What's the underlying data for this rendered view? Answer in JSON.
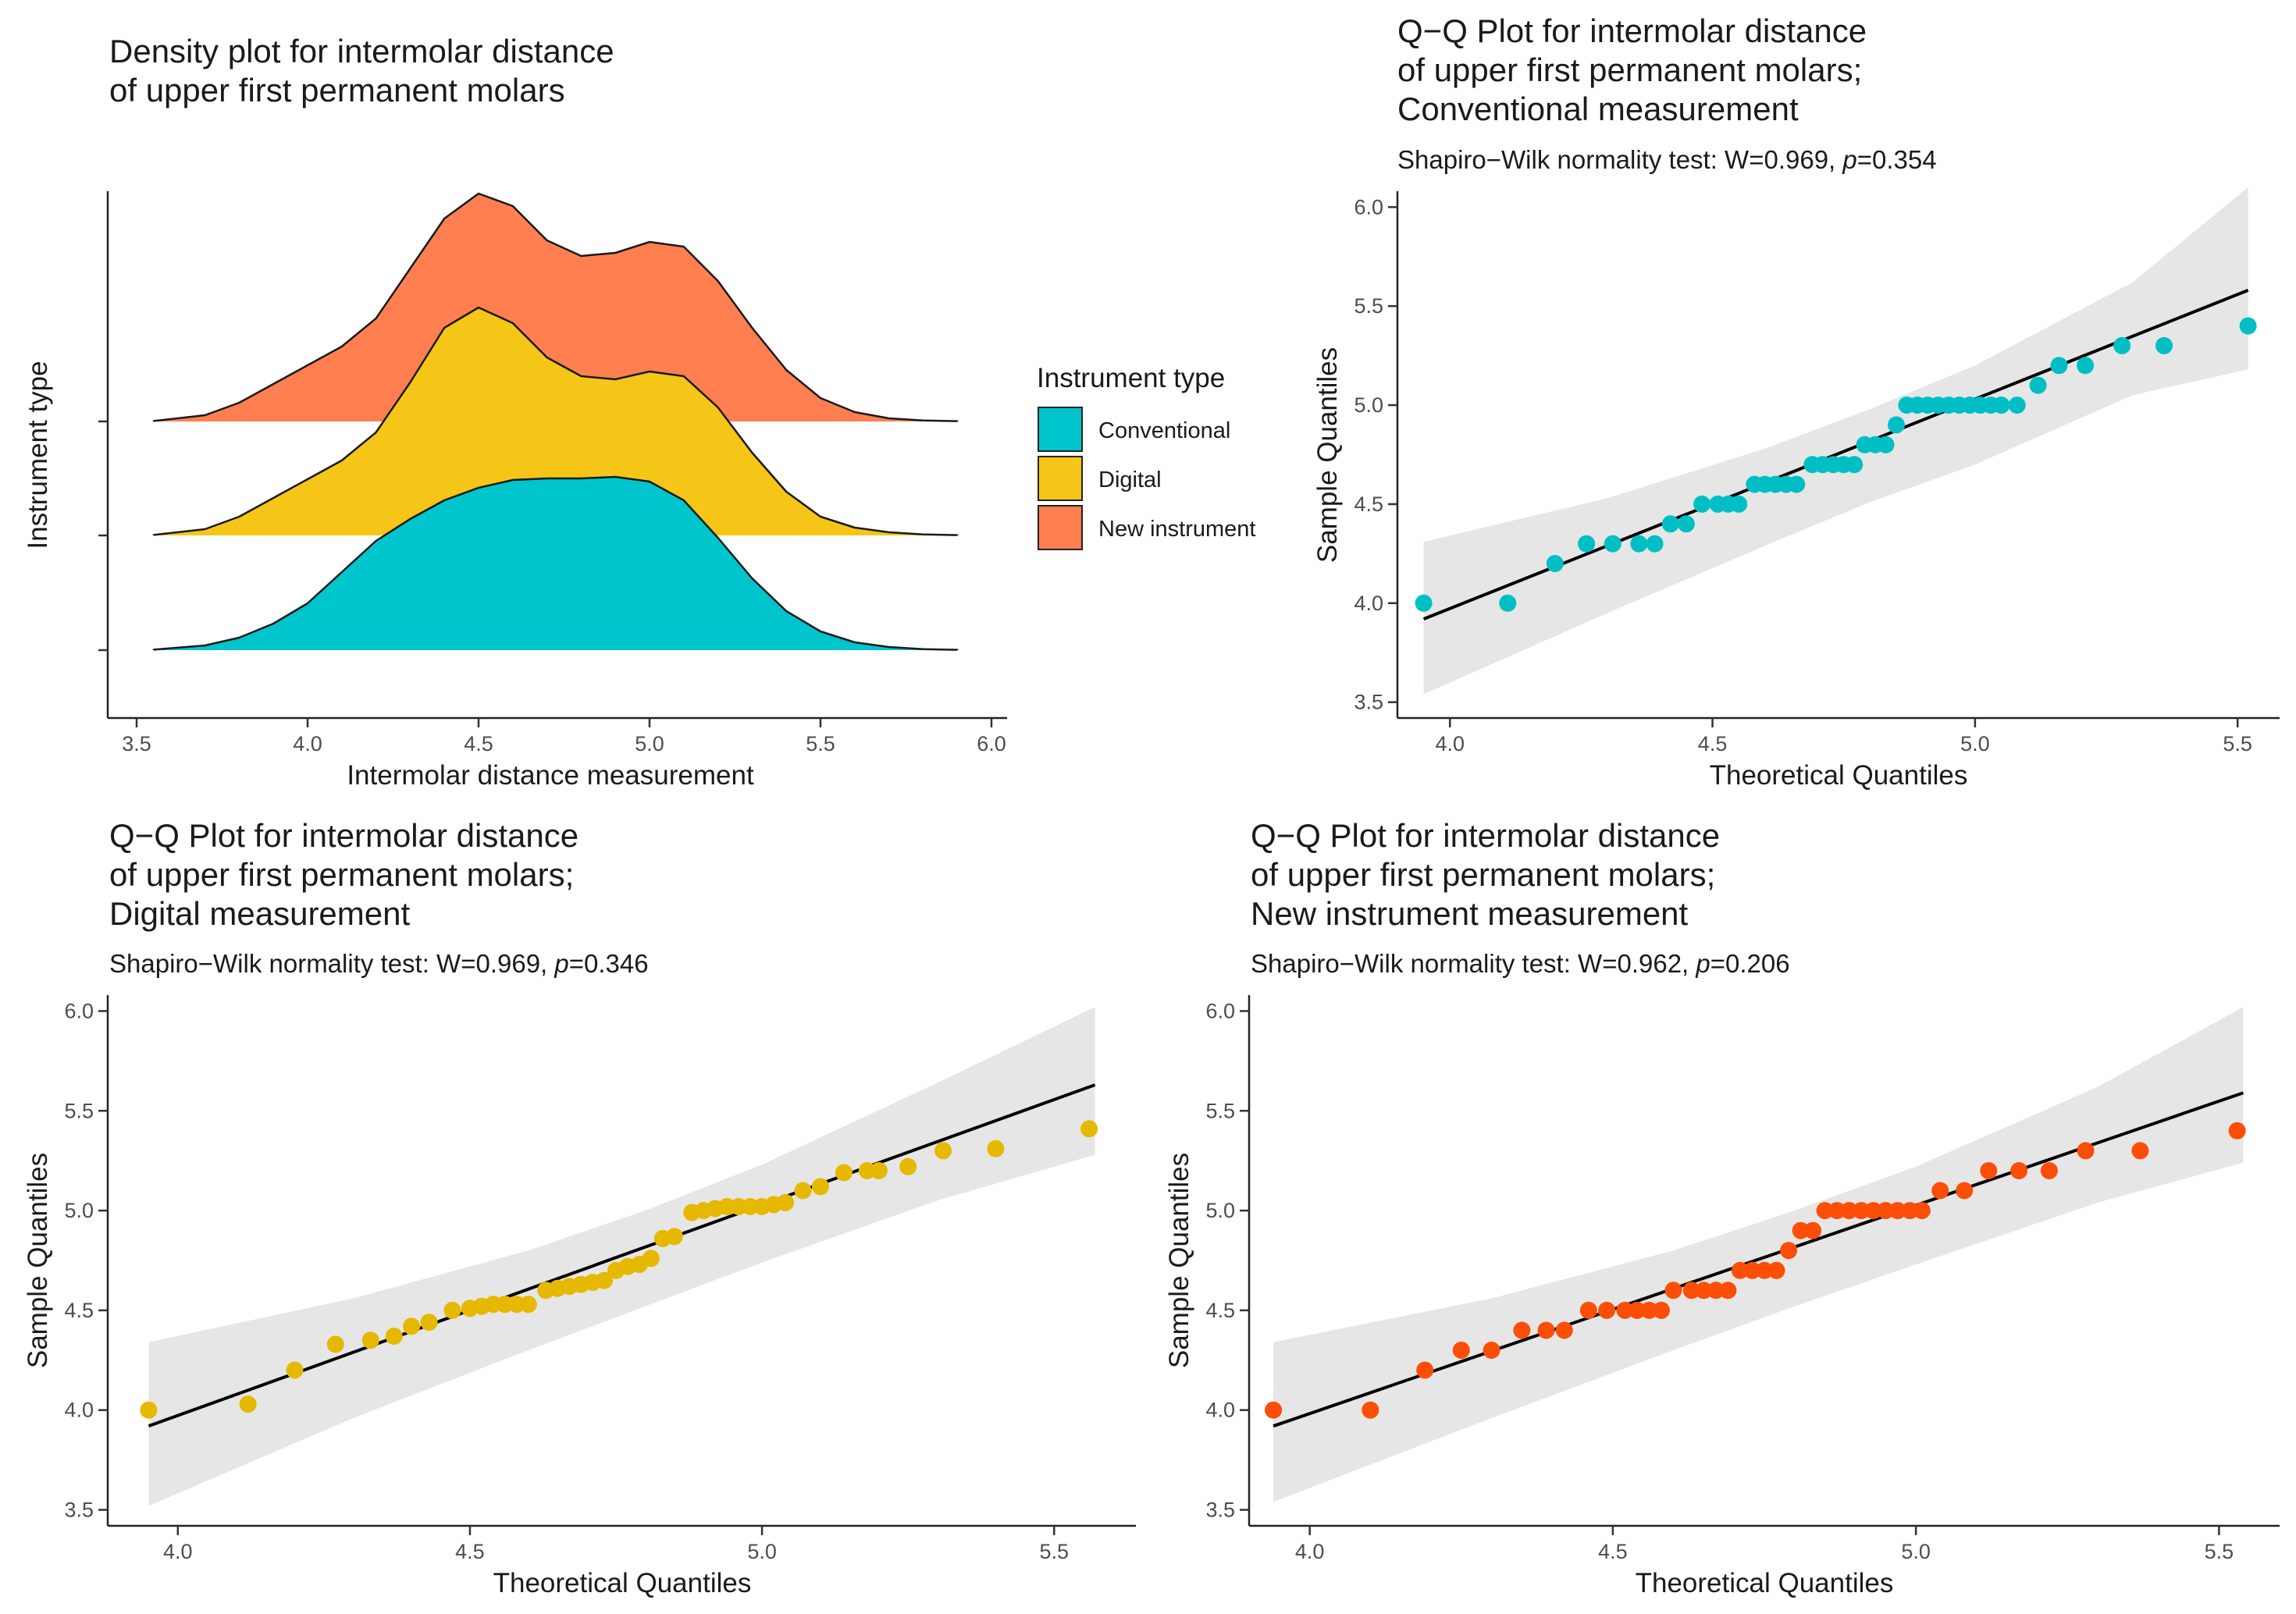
{
  "chart_data": [
    {
      "type": "ridgeline-density",
      "title_lines": [
        "Density plot for intermolar distance",
        "of upper first permanent molars"
      ],
      "xlabel": "Intermolar distance measurement",
      "ylabel": "Instrument type",
      "xlim": [
        3.5,
        6.0
      ],
      "x_ticks": [
        3.5,
        4.0,
        4.5,
        5.0,
        5.5,
        6.0
      ],
      "x_tick_labels": [
        "3.5",
        "4.0",
        "4.5",
        "5.0",
        "5.5",
        "6.0"
      ],
      "legend": {
        "title": "Instrument type",
        "position": "right",
        "entries": [
          {
            "label": "Conventional",
            "color": "#00C5CD"
          },
          {
            "label": "Digital",
            "color": "#F5C518"
          },
          {
            "label": "New instrument",
            "color": "#FF7F50"
          }
        ]
      },
      "series": [
        {
          "name": "Conventional",
          "color": "#00C5CD",
          "x": [
            3.55,
            3.7,
            3.8,
            3.9,
            4.0,
            4.1,
            4.2,
            4.3,
            4.4,
            4.5,
            4.6,
            4.7,
            4.8,
            4.9,
            5.0,
            5.1,
            5.2,
            5.3,
            5.4,
            5.5,
            5.6,
            5.7,
            5.8,
            5.9
          ],
          "density": [
            0.003,
            0.03,
            0.08,
            0.17,
            0.3,
            0.5,
            0.7,
            0.84,
            0.96,
            1.04,
            1.09,
            1.1,
            1.1,
            1.11,
            1.08,
            0.96,
            0.72,
            0.46,
            0.25,
            0.12,
            0.05,
            0.02,
            0.006,
            0.002
          ]
        },
        {
          "name": "Digital",
          "color": "#F5C518",
          "x": [
            3.55,
            3.7,
            3.8,
            3.9,
            4.0,
            4.1,
            4.2,
            4.3,
            4.4,
            4.5,
            4.6,
            4.7,
            4.8,
            4.9,
            5.0,
            5.1,
            5.2,
            5.3,
            5.4,
            5.5,
            5.6,
            5.7,
            5.8,
            5.9
          ],
          "density": [
            0.003,
            0.04,
            0.12,
            0.24,
            0.36,
            0.48,
            0.66,
            0.98,
            1.33,
            1.46,
            1.36,
            1.14,
            1.02,
            1.0,
            1.05,
            1.02,
            0.82,
            0.53,
            0.28,
            0.12,
            0.05,
            0.02,
            0.006,
            0.002
          ]
        },
        {
          "name": "New instrument",
          "color": "#FF7F50",
          "x": [
            3.55,
            3.7,
            3.8,
            3.9,
            4.0,
            4.1,
            4.2,
            4.3,
            4.4,
            4.5,
            4.6,
            4.7,
            4.8,
            4.9,
            5.0,
            5.1,
            5.2,
            5.3,
            5.4,
            5.5,
            5.6,
            5.7,
            5.8,
            5.9
          ],
          "density": [
            0.003,
            0.04,
            0.12,
            0.24,
            0.36,
            0.48,
            0.66,
            0.98,
            1.3,
            1.46,
            1.38,
            1.16,
            1.06,
            1.08,
            1.15,
            1.12,
            0.9,
            0.6,
            0.33,
            0.15,
            0.06,
            0.02,
            0.006,
            0.002
          ]
        }
      ]
    },
    {
      "type": "scatter",
      "subtype": "qq-plot",
      "title_lines": [
        "Q−Q Plot  for intermolar distance",
        "of upper first permanent molars;",
        "Conventional measurement"
      ],
      "subtitle_prefix": "Shapiro−Wilk normality test: W=0.969, ",
      "subtitle_p": "p",
      "subtitle_suffix": "=0.354",
      "xlabel": "Theoretical Quantiles",
      "ylabel": "Sample Quantiles",
      "xlim": [
        3.9,
        5.58
      ],
      "ylim": [
        3.42,
        6.08
      ],
      "x_ticks": [
        4.0,
        4.5,
        5.0,
        5.5
      ],
      "x_tick_labels": [
        "4.0",
        "4.5",
        "5.0",
        "5.5"
      ],
      "y_ticks": [
        3.5,
        4.0,
        4.5,
        5.0,
        5.5,
        6.0
      ],
      "y_tick_labels": [
        "3.5",
        "4.0",
        "4.5",
        "5.0",
        "5.5",
        "6.0"
      ],
      "point_color": "#00BFC4",
      "ref_line": {
        "x": [
          3.95,
          5.52
        ],
        "y": [
          3.92,
          5.58
        ]
      },
      "band": {
        "x": [
          3.95,
          4.3,
          4.6,
          4.8,
          5.0,
          5.3,
          5.52
        ],
        "upper": [
          4.31,
          4.53,
          4.78,
          4.98,
          5.2,
          5.62,
          6.1
        ],
        "lower": [
          3.54,
          3.95,
          4.29,
          4.51,
          4.7,
          5.05,
          5.18
        ]
      },
      "x": [
        3.95,
        4.11,
        4.2,
        4.26,
        4.31,
        4.36,
        4.39,
        4.42,
        4.45,
        4.48,
        4.51,
        4.53,
        4.55,
        4.58,
        4.6,
        4.62,
        4.64,
        4.66,
        4.69,
        4.71,
        4.73,
        4.75,
        4.77,
        4.79,
        4.81,
        4.83,
        4.85,
        4.87,
        4.89,
        4.91,
        4.93,
        4.95,
        4.97,
        4.99,
        5.01,
        5.03,
        5.05,
        5.08,
        5.12,
        5.16,
        5.21,
        5.28,
        5.36,
        5.52
      ],
      "y": [
        4.0,
        4.0,
        4.2,
        4.3,
        4.3,
        4.3,
        4.3,
        4.4,
        4.4,
        4.5,
        4.5,
        4.5,
        4.5,
        4.6,
        4.6,
        4.6,
        4.6,
        4.6,
        4.7,
        4.7,
        4.7,
        4.7,
        4.7,
        4.8,
        4.8,
        4.8,
        4.9,
        5.0,
        5.0,
        5.0,
        5.0,
        5.0,
        5.0,
        5.0,
        5.0,
        5.0,
        5.0,
        5.0,
        5.1,
        5.2,
        5.2,
        5.3,
        5.3,
        5.4
      ]
    },
    {
      "type": "scatter",
      "subtype": "qq-plot",
      "title_lines": [
        "Q−Q Plot  for intermolar distance",
        "of upper first permanent molars;",
        "Digital measurement"
      ],
      "subtitle_prefix": "Shapiro−Wilk normality test: W=0.969, ",
      "subtitle_p": "p",
      "subtitle_suffix": "=0.346",
      "xlabel": "Theoretical Quantiles",
      "ylabel": "Sample Quantiles",
      "xlim": [
        3.88,
        5.64
      ],
      "ylim": [
        3.42,
        6.08
      ],
      "x_ticks": [
        4.0,
        4.5,
        5.0,
        5.5
      ],
      "x_tick_labels": [
        "4.0",
        "4.5",
        "5.0",
        "5.5"
      ],
      "y_ticks": [
        3.5,
        4.0,
        4.5,
        5.0,
        5.5,
        6.0
      ],
      "y_tick_labels": [
        "3.5",
        "4.0",
        "4.5",
        "5.0",
        "5.5",
        "6.0"
      ],
      "point_color": "#E7B800",
      "ref_line": {
        "x": [
          3.95,
          5.57
        ],
        "y": [
          3.92,
          5.63
        ]
      },
      "band": {
        "x": [
          3.95,
          4.3,
          4.6,
          4.8,
          5.0,
          5.3,
          5.57
        ],
        "upper": [
          4.34,
          4.56,
          4.8,
          5.0,
          5.23,
          5.64,
          6.02
        ],
        "lower": [
          3.52,
          3.96,
          4.3,
          4.52,
          4.74,
          5.05,
          5.28
        ]
      },
      "x": [
        3.95,
        4.12,
        4.2,
        4.27,
        4.33,
        4.37,
        4.4,
        4.43,
        4.47,
        4.5,
        4.52,
        4.54,
        4.56,
        4.58,
        4.6,
        4.63,
        4.65,
        4.67,
        4.69,
        4.71,
        4.73,
        4.75,
        4.77,
        4.79,
        4.81,
        4.83,
        4.85,
        4.88,
        4.9,
        4.92,
        4.94,
        4.96,
        4.98,
        5.0,
        5.02,
        5.04,
        5.07,
        5.1,
        5.14,
        5.18,
        5.2,
        5.25,
        5.31,
        5.4,
        5.56
      ],
      "y": [
        4.0,
        4.03,
        4.2,
        4.33,
        4.35,
        4.37,
        4.42,
        4.44,
        4.5,
        4.51,
        4.52,
        4.53,
        4.53,
        4.53,
        4.53,
        4.6,
        4.61,
        4.62,
        4.63,
        4.64,
        4.65,
        4.7,
        4.72,
        4.73,
        4.76,
        4.86,
        4.87,
        4.99,
        5.0,
        5.01,
        5.02,
        5.02,
        5.02,
        5.02,
        5.03,
        5.04,
        5.1,
        5.12,
        5.19,
        5.2,
        5.2,
        5.22,
        5.3,
        5.31,
        5.41
      ]
    },
    {
      "type": "scatter",
      "subtype": "qq-plot",
      "title_lines": [
        "Q−Q Plot  for intermolar distance",
        "of upper first permanent molars;",
        "New instrument measurement"
      ],
      "subtitle_prefix": "Shapiro−Wilk normality test: W=0.962, ",
      "subtitle_p": "p",
      "subtitle_suffix": "=0.206",
      "xlabel": "Theoretical Quantiles",
      "ylabel": "Sample Quantiles",
      "xlim": [
        3.9,
        5.6
      ],
      "ylim": [
        3.42,
        6.08
      ],
      "x_ticks": [
        4.0,
        4.5,
        5.0,
        5.5
      ],
      "x_tick_labels": [
        "4.0",
        "4.5",
        "5.0",
        "5.5"
      ],
      "y_ticks": [
        3.5,
        4.0,
        4.5,
        5.0,
        5.5,
        6.0
      ],
      "y_tick_labels": [
        "3.5",
        "4.0",
        "4.5",
        "5.0",
        "5.5",
        "6.0"
      ],
      "point_color": "#FC4E07",
      "ref_line": {
        "x": [
          3.94,
          5.54
        ],
        "y": [
          3.92,
          5.59
        ]
      },
      "band": {
        "x": [
          3.94,
          4.3,
          4.6,
          4.8,
          5.0,
          5.3,
          5.54
        ],
        "upper": [
          4.34,
          4.56,
          4.8,
          5.0,
          5.22,
          5.62,
          6.02
        ],
        "lower": [
          3.54,
          3.96,
          4.3,
          4.52,
          4.73,
          5.04,
          5.24
        ]
      },
      "x": [
        3.94,
        4.1,
        4.19,
        4.25,
        4.3,
        4.35,
        4.39,
        4.42,
        4.46,
        4.49,
        4.52,
        4.54,
        4.56,
        4.58,
        4.6,
        4.63,
        4.65,
        4.67,
        4.69,
        4.71,
        4.73,
        4.75,
        4.77,
        4.79,
        4.81,
        4.83,
        4.85,
        4.87,
        4.89,
        4.91,
        4.93,
        4.95,
        4.97,
        4.99,
        5.01,
        5.04,
        5.08,
        5.12,
        5.17,
        5.22,
        5.28,
        5.37,
        5.53
      ],
      "y": [
        4.0,
        4.0,
        4.2,
        4.3,
        4.3,
        4.4,
        4.4,
        4.4,
        4.5,
        4.5,
        4.5,
        4.5,
        4.5,
        4.5,
        4.6,
        4.6,
        4.6,
        4.6,
        4.6,
        4.7,
        4.7,
        4.7,
        4.7,
        4.8,
        4.9,
        4.9,
        5.0,
        5.0,
        5.0,
        5.0,
        5.0,
        5.0,
        5.0,
        5.0,
        5.0,
        5.1,
        5.1,
        5.2,
        5.2,
        5.2,
        5.3,
        5.3,
        5.4
      ]
    }
  ]
}
